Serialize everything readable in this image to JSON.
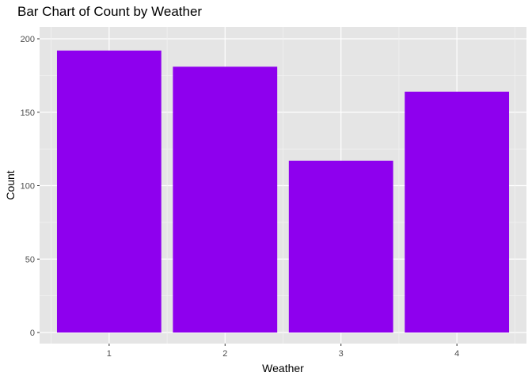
{
  "chart_data": {
    "type": "bar",
    "title": "Bar Chart of Count by Weather",
    "xlabel": "Weather",
    "ylabel": "Count",
    "categories": [
      "1",
      "2",
      "3",
      "4"
    ],
    "values": [
      192,
      181,
      117,
      164
    ],
    "ylim": [
      0,
      200
    ],
    "yticks": [
      "0",
      "50",
      "100",
      "150",
      "200"
    ],
    "grid": true,
    "legend": "none",
    "colors": {
      "bar": "#8E00EE",
      "panel": "#E5E5E5",
      "grid_major": "#FFFFFF",
      "tick_text": "#4D4D4D"
    }
  }
}
